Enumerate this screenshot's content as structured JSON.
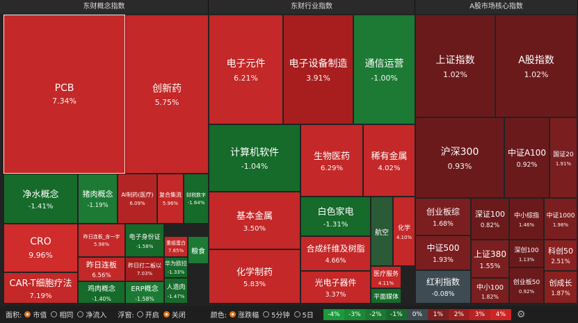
{
  "panels": [
    {
      "title": "东财概念指数",
      "tiles": [
        {
          "name": "PCB",
          "change": "7.34%"
        },
        {
          "name": "创新药",
          "change": "5.75%"
        },
        {
          "name": "净水概念",
          "change": "-1.41%"
        },
        {
          "name": "猪肉概念",
          "change": "-1.19%"
        },
        {
          "name": "AI制药(医疗)",
          "change": "6.09%"
        },
        {
          "name": "复合集流",
          "change": "5.96%"
        },
        {
          "name": "财税数字",
          "change": "-1.64%"
        },
        {
          "name": "CRO",
          "change": "9.96%"
        },
        {
          "name": "CAR-T细胞疗法",
          "change": "7.19%"
        },
        {
          "name": "昨日连板_含一字",
          "change": "5.98%"
        },
        {
          "name": "昨日连板",
          "change": "6.56%"
        },
        {
          "name": "鸡肉概念",
          "change": "-1.40%"
        },
        {
          "name": "电子身份证",
          "change": "-1.58%"
        },
        {
          "name": "昨日打二板以",
          "change": "7.03%"
        },
        {
          "name": "ERP概念",
          "change": "-1.58%"
        },
        {
          "name": "重组蛋白",
          "change": "7.85%"
        },
        {
          "name": "华为欧拉",
          "change": "-1.33%"
        },
        {
          "name": "人造肉",
          "change": "-1.47%"
        },
        {
          "name": "粮食",
          "change": ""
        }
      ]
    },
    {
      "title": "东财行业指数",
      "tiles": [
        {
          "name": "电子元件",
          "change": "6.21%"
        },
        {
          "name": "电子设备制造",
          "change": "3.91%"
        },
        {
          "name": "通信运营",
          "change": "-1.00%"
        },
        {
          "name": "计算机软件",
          "change": "-1.04%"
        },
        {
          "name": "生物医药",
          "change": "6.29%"
        },
        {
          "name": "稀有金属",
          "change": "4.02%"
        },
        {
          "name": "基本金属",
          "change": "3.50%"
        },
        {
          "name": "化学制药",
          "change": "5.83%"
        },
        {
          "name": "白色家电",
          "change": "-1.31%"
        },
        {
          "name": "合成纤维及树脂",
          "change": "4.66%"
        },
        {
          "name": "光电子器件",
          "change": "3.37%"
        },
        {
          "name": "航空",
          "change": ""
        },
        {
          "name": "化学",
          "change": "4.10%"
        },
        {
          "name": "医疗服务",
          "change": "4.11%"
        },
        {
          "name": "平面媒体",
          "change": ""
        }
      ]
    },
    {
      "title": "A股市场核心指数",
      "tiles": [
        {
          "name": "上证指数",
          "change": "1.02%"
        },
        {
          "name": "A股指数",
          "change": "1.02%"
        },
        {
          "name": "沪深300",
          "change": "0.93%"
        },
        {
          "name": "中证A100",
          "change": "0.92%"
        },
        {
          "name": "国证20",
          "change": "1.91%"
        },
        {
          "name": "创业板综",
          "change": "1.68%"
        },
        {
          "name": "中证500",
          "change": "1.93%"
        },
        {
          "name": "红利指数",
          "change": "-0.08%"
        },
        {
          "name": "深证100",
          "change": "0.82%"
        },
        {
          "name": "中小综指",
          "change": "1.46%"
        },
        {
          "name": "中证1000",
          "change": "1.98%"
        },
        {
          "name": "上证380",
          "change": "1.55%"
        },
        {
          "name": "深创100",
          "change": "1.13%"
        },
        {
          "name": "科创50",
          "change": "2.51%"
        },
        {
          "name": "中小100",
          "change": "1.82%"
        },
        {
          "name": "创业板50",
          "change": "0.92%"
        },
        {
          "name": "创成长",
          "change": "1.87%"
        }
      ]
    }
  ],
  "toolbar": {
    "area_label": "面积:",
    "area_options": [
      "市值",
      "相同",
      "净流入"
    ],
    "float_label": "浮窗:",
    "float_options": [
      "开启",
      "关闭"
    ],
    "color_label": "颜色:",
    "color_options": [
      "涨跌幅",
      "5分钟",
      "5日"
    ],
    "legend": [
      "-4%",
      "-3%",
      "-2%",
      "-1%",
      "0%",
      "1%",
      "2%",
      "3%",
      "4%"
    ]
  }
}
